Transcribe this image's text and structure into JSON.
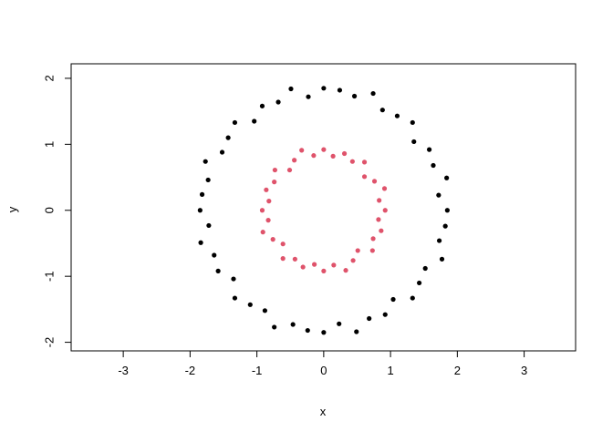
{
  "chart_data": {
    "type": "scatter",
    "title": "",
    "xlabel": "x",
    "ylabel": "y",
    "xlim": [
      -3.78,
      3.77
    ],
    "ylim": [
      -2.13,
      2.22
    ],
    "x_ticks": [
      -3,
      -2,
      -1,
      0,
      1,
      2,
      3
    ],
    "y_ticks": [
      -2,
      -1,
      0,
      1,
      2
    ],
    "grid": false,
    "legend": "none",
    "series": [
      {
        "color": "#000000",
        "points": [
          [
            1.85,
            0
          ],
          [
            1.72,
            0.23
          ],
          [
            1.84,
            0.49
          ],
          [
            1.64,
            0.68
          ],
          [
            1.58,
            0.92
          ],
          [
            1.35,
            1.04
          ],
          [
            1.33,
            1.33
          ],
          [
            1.1,
            1.43
          ],
          [
            0.88,
            1.52
          ],
          [
            0.74,
            1.77
          ],
          [
            0.46,
            1.73
          ],
          [
            0.24,
            1.82
          ],
          [
            0,
            1.85
          ],
          [
            -0.23,
            1.72
          ],
          [
            -0.49,
            1.84
          ],
          [
            -0.68,
            1.64
          ],
          [
            -0.92,
            1.58
          ],
          [
            -1.04,
            1.35
          ],
          [
            -1.33,
            1.33
          ],
          [
            -1.43,
            1.1
          ],
          [
            -1.52,
            0.88
          ],
          [
            -1.77,
            0.74
          ],
          [
            -1.73,
            0.46
          ],
          [
            -1.82,
            0.24
          ],
          [
            -1.85,
            0
          ],
          [
            -1.72,
            -0.23
          ],
          [
            -1.84,
            -0.49
          ],
          [
            -1.64,
            -0.68
          ],
          [
            -1.58,
            -0.92
          ],
          [
            -1.35,
            -1.04
          ],
          [
            -1.33,
            -1.33
          ],
          [
            -1.1,
            -1.43
          ],
          [
            -0.88,
            -1.52
          ],
          [
            -0.74,
            -1.77
          ],
          [
            -0.46,
            -1.73
          ],
          [
            -0.24,
            -1.82
          ],
          [
            0,
            -1.85
          ],
          [
            0.23,
            -1.72
          ],
          [
            0.49,
            -1.84
          ],
          [
            0.68,
            -1.64
          ],
          [
            0.92,
            -1.58
          ],
          [
            1.04,
            -1.35
          ],
          [
            1.33,
            -1.33
          ],
          [
            1.43,
            -1.1
          ],
          [
            1.52,
            -0.88
          ],
          [
            1.77,
            -0.74
          ],
          [
            1.73,
            -0.46
          ],
          [
            1.82,
            -0.24
          ]
        ]
      },
      {
        "color": "#DF536B",
        "points": [
          [
            0.92,
            0
          ],
          [
            0.83,
            0.15
          ],
          [
            0.91,
            0.33
          ],
          [
            0.76,
            0.44
          ],
          [
            0.61,
            0.51
          ],
          [
            0.61,
            0.73
          ],
          [
            0.43,
            0.74
          ],
          [
            0.31,
            0.86
          ],
          [
            0.14,
            0.82
          ],
          [
            0,
            0.92
          ],
          [
            -0.15,
            0.83
          ],
          [
            -0.33,
            0.91
          ],
          [
            -0.44,
            0.76
          ],
          [
            -0.51,
            0.61
          ],
          [
            -0.73,
            0.61
          ],
          [
            -0.74,
            0.43
          ],
          [
            -0.86,
            0.31
          ],
          [
            -0.82,
            0.14
          ],
          [
            -0.92,
            0
          ],
          [
            -0.83,
            -0.15
          ],
          [
            -0.91,
            -0.33
          ],
          [
            -0.76,
            -0.44
          ],
          [
            -0.61,
            -0.51
          ],
          [
            -0.61,
            -0.73
          ],
          [
            -0.43,
            -0.74
          ],
          [
            -0.31,
            -0.86
          ],
          [
            -0.14,
            -0.82
          ],
          [
            0,
            -0.92
          ],
          [
            0.15,
            -0.83
          ],
          [
            0.33,
            -0.91
          ],
          [
            0.44,
            -0.76
          ],
          [
            0.51,
            -0.61
          ],
          [
            0.73,
            -0.61
          ],
          [
            0.74,
            -0.43
          ],
          [
            0.86,
            -0.31
          ],
          [
            0.82,
            -0.14
          ]
        ]
      }
    ]
  }
}
